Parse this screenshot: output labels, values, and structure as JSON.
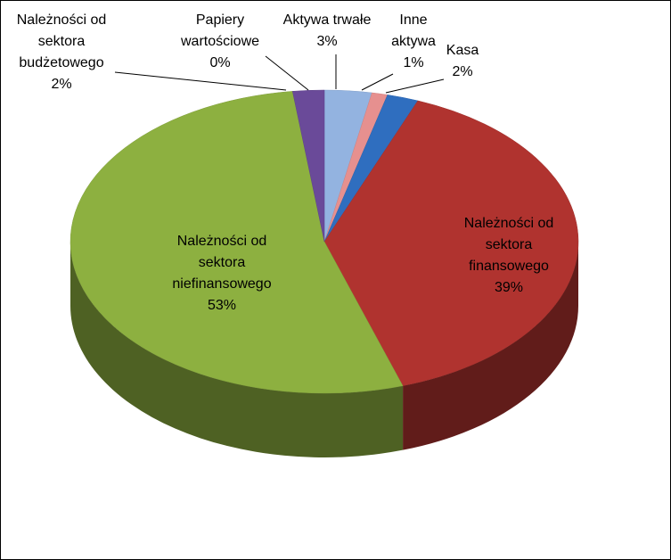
{
  "chart_data": {
    "type": "pie3d",
    "categories": [
      "Aktywa trwałe",
      "Inne aktywa",
      "Kasa",
      "Należności od sektora finansowego",
      "Należności od sektora niefinansowego",
      "Należności od sektora budżetowego",
      "Papiery wartościowe"
    ],
    "values": [
      3,
      1,
      2,
      39,
      53,
      2,
      0
    ],
    "value_labels": [
      "3%",
      "1%",
      "2%",
      "39%",
      "53%",
      "2%",
      "0%"
    ],
    "colors": [
      "#93b3e0",
      "#e6908f",
      "#2f6ebf",
      "#b0332f",
      "#8db040",
      "#6a4a99",
      "#f08a30"
    ]
  }
}
